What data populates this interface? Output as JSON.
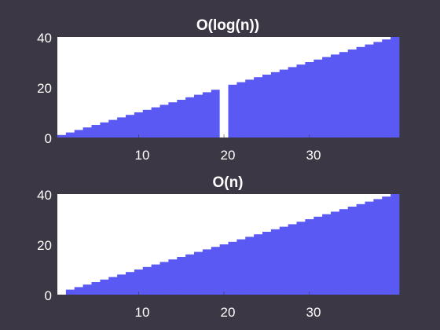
{
  "figure": {
    "background": "#3c3744",
    "axes_background": "#ffffff",
    "bar_color": "#5a59f4",
    "highlight_color": "#ffffff"
  },
  "chart_data": [
    {
      "type": "bar",
      "title": "O(log(n))",
      "xlabel": "",
      "ylabel": "",
      "x": [
        1,
        2,
        3,
        4,
        5,
        6,
        7,
        8,
        9,
        10,
        11,
        12,
        13,
        14,
        15,
        16,
        17,
        18,
        19,
        20,
        21,
        22,
        23,
        24,
        25,
        26,
        27,
        28,
        29,
        30,
        31,
        32,
        33,
        34,
        35,
        36,
        37,
        38,
        39,
        40
      ],
      "values": [
        1,
        2,
        3,
        4,
        5,
        6,
        7,
        8,
        9,
        10,
        11,
        12,
        13,
        14,
        15,
        16,
        17,
        18,
        19,
        20,
        21,
        22,
        23,
        24,
        25,
        26,
        27,
        28,
        29,
        30,
        31,
        32,
        33,
        34,
        35,
        36,
        37,
        38,
        39,
        40
      ],
      "highlight_index": 20,
      "xlim": [
        0.5,
        40.5
      ],
      "ylim": [
        0,
        40
      ],
      "xticks": [
        "10",
        "20",
        "30"
      ],
      "yticks": [
        "0",
        "20",
        "40"
      ],
      "grid": false
    },
    {
      "type": "bar",
      "title": "O(n)",
      "xlabel": "",
      "ylabel": "",
      "x": [
        1,
        2,
        3,
        4,
        5,
        6,
        7,
        8,
        9,
        10,
        11,
        12,
        13,
        14,
        15,
        16,
        17,
        18,
        19,
        20,
        21,
        22,
        23,
        24,
        25,
        26,
        27,
        28,
        29,
        30,
        31,
        32,
        33,
        34,
        35,
        36,
        37,
        38,
        39,
        40
      ],
      "values": [
        1,
        2,
        3,
        4,
        5,
        6,
        7,
        8,
        9,
        10,
        11,
        12,
        13,
        14,
        15,
        16,
        17,
        18,
        19,
        20,
        21,
        22,
        23,
        24,
        25,
        26,
        27,
        28,
        29,
        30,
        31,
        32,
        33,
        34,
        35,
        36,
        37,
        38,
        39,
        40
      ],
      "highlight_index": 1,
      "xlim": [
        0.5,
        40.5
      ],
      "ylim": [
        0,
        40
      ],
      "xticks": [
        "10",
        "20",
        "30"
      ],
      "yticks": [
        "0",
        "20",
        "40"
      ],
      "grid": false
    }
  ]
}
